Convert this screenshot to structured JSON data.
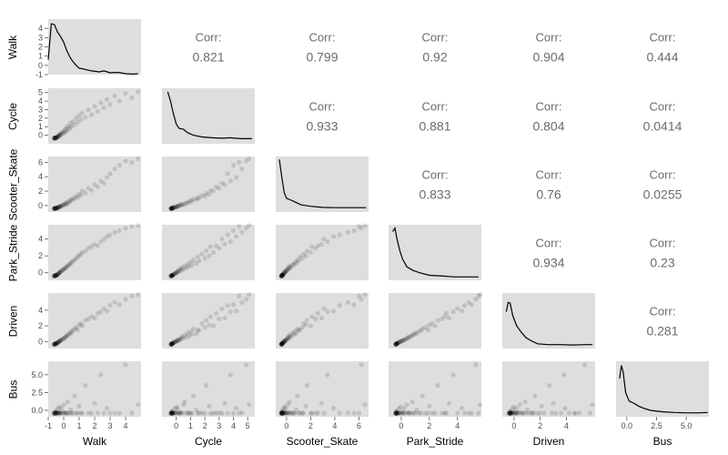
{
  "chart_data": {
    "type": "scatter",
    "variables": [
      "Walk",
      "Cycle",
      "Scooter_Skate",
      "Park_Stride",
      "Driven",
      "Bus"
    ],
    "axis_ranges": {
      "Walk": [
        -1,
        5
      ],
      "Cycle": [
        -1,
        5.5
      ],
      "Scooter_Skate": [
        -0.9,
        6.8
      ],
      "Park_Stride": [
        -0.9,
        5.7
      ],
      "Driven": [
        -0.9,
        6.2
      ],
      "Bus": [
        -0.9,
        6.9
      ]
    },
    "tick_values": {
      "Walk": [
        -1,
        0,
        1,
        2,
        3,
        4
      ],
      "Cycle": [
        0,
        1,
        2,
        3,
        4,
        5
      ],
      "Scooter_Skate": [
        0,
        2,
        4,
        6
      ],
      "Park_Stride": [
        0,
        2,
        4
      ],
      "Driven": [
        0,
        2,
        4
      ],
      "Bus": [
        0.0,
        2.5,
        5.0
      ]
    },
    "tick_labels": {
      "Walk": [
        "-1",
        "0",
        "1",
        "2",
        "3",
        "4"
      ],
      "Cycle": [
        "0",
        "1",
        "2",
        "3",
        "4",
        "5"
      ],
      "Scooter_Skate": [
        "0",
        "2",
        "4",
        "6"
      ],
      "Park_Stride": [
        "0",
        "2",
        "4"
      ],
      "Driven": [
        "0",
        "2",
        "4"
      ],
      "Bus": [
        "0.0",
        "2.5",
        "5.0"
      ]
    },
    "correlation_label": "Corr:",
    "correlations": [
      {
        "row": "Walk",
        "col": "Cycle",
        "value": "0.821"
      },
      {
        "row": "Walk",
        "col": "Scooter_Skate",
        "value": "0.799"
      },
      {
        "row": "Walk",
        "col": "Park_Stride",
        "value": "0.92"
      },
      {
        "row": "Walk",
        "col": "Driven",
        "value": "0.904"
      },
      {
        "row": "Walk",
        "col": "Bus",
        "value": "0.444"
      },
      {
        "row": "Cycle",
        "col": "Scooter_Skate",
        "value": "0.933"
      },
      {
        "row": "Cycle",
        "col": "Park_Stride",
        "value": "0.881"
      },
      {
        "row": "Cycle",
        "col": "Driven",
        "value": "0.804"
      },
      {
        "row": "Cycle",
        "col": "Bus",
        "value": "0.0414"
      },
      {
        "row": "Scooter_Skate",
        "col": "Park_Stride",
        "value": "0.833"
      },
      {
        "row": "Scooter_Skate",
        "col": "Driven",
        "value": "0.76"
      },
      {
        "row": "Scooter_Skate",
        "col": "Bus",
        "value": "0.0255"
      },
      {
        "row": "Park_Stride",
        "col": "Driven",
        "value": "0.934"
      },
      {
        "row": "Park_Stride",
        "col": "Bus",
        "value": "0.23"
      },
      {
        "row": "Driven",
        "col": "Bus",
        "value": "0.281"
      }
    ],
    "density_curves": {
      "Walk": [
        [
          -1,
          0.6
        ],
        [
          -0.8,
          4.5
        ],
        [
          -0.6,
          4.4
        ],
        [
          -0.4,
          3.6
        ],
        [
          -0.2,
          3.1
        ],
        [
          0,
          2.5
        ],
        [
          0.2,
          1.6
        ],
        [
          0.4,
          0.9
        ],
        [
          0.6,
          0.4
        ],
        [
          0.8,
          0.0
        ],
        [
          1.0,
          -0.3
        ],
        [
          1.3,
          -0.4
        ],
        [
          1.8,
          -0.6
        ],
        [
          2.3,
          -0.7
        ],
        [
          2.6,
          -0.6
        ],
        [
          3.0,
          -0.8
        ],
        [
          3.5,
          -0.75
        ],
        [
          4.0,
          -0.9
        ],
        [
          4.5,
          -0.95
        ],
        [
          4.8,
          -0.9
        ]
      ],
      "Cycle": [
        [
          -0.6,
          5.1
        ],
        [
          -0.4,
          4.0
        ],
        [
          -0.2,
          2.5
        ],
        [
          0,
          1.3
        ],
        [
          0.2,
          0.8
        ],
        [
          0.5,
          0.7
        ],
        [
          0.8,
          0.3
        ],
        [
          1.2,
          0.0
        ],
        [
          1.8,
          -0.2
        ],
        [
          2.5,
          -0.3
        ],
        [
          3.2,
          -0.35
        ],
        [
          3.8,
          -0.3
        ],
        [
          4.5,
          -0.4
        ],
        [
          5.3,
          -0.4
        ]
      ],
      "Scooter_Skate": [
        [
          -0.6,
          6.4
        ],
        [
          -0.4,
          4.0
        ],
        [
          -0.2,
          1.8
        ],
        [
          0,
          1.0
        ],
        [
          0.3,
          0.8
        ],
        [
          0.7,
          0.5
        ],
        [
          1.2,
          0.1
        ],
        [
          2.0,
          -0.1
        ],
        [
          3.0,
          -0.25
        ],
        [
          4.0,
          -0.3
        ],
        [
          5.0,
          -0.3
        ],
        [
          6.0,
          -0.3
        ],
        [
          6.6,
          -0.3
        ]
      ],
      "Park_Stride": [
        [
          -0.6,
          4.9
        ],
        [
          -0.45,
          5.3
        ],
        [
          -0.3,
          4.0
        ],
        [
          -0.1,
          2.6
        ],
        [
          0.1,
          1.6
        ],
        [
          0.4,
          0.7
        ],
        [
          0.8,
          0.3
        ],
        [
          1.3,
          0.0
        ],
        [
          2.0,
          -0.3
        ],
        [
          3.0,
          -0.4
        ],
        [
          3.8,
          -0.5
        ],
        [
          4.6,
          -0.5
        ],
        [
          5.5,
          -0.5
        ]
      ],
      "Driven": [
        [
          -0.6,
          3.8
        ],
        [
          -0.45,
          5.0
        ],
        [
          -0.3,
          4.9
        ],
        [
          -0.1,
          3.3
        ],
        [
          0.2,
          2.0
        ],
        [
          0.5,
          1.3
        ],
        [
          0.9,
          0.5
        ],
        [
          1.3,
          0.1
        ],
        [
          1.8,
          -0.3
        ],
        [
          2.6,
          -0.4
        ],
        [
          3.5,
          -0.4
        ],
        [
          4.5,
          -0.45
        ],
        [
          5.5,
          -0.4
        ],
        [
          6.0,
          -0.4
        ]
      ],
      "Bus": [
        [
          -0.6,
          4.5
        ],
        [
          -0.45,
          6.3
        ],
        [
          -0.3,
          5.4
        ],
        [
          -0.1,
          2.5
        ],
        [
          0.2,
          1.3
        ],
        [
          0.6,
          1.0
        ],
        [
          1.0,
          0.6
        ],
        [
          1.4,
          0.3
        ],
        [
          2.0,
          0.0
        ],
        [
          3.0,
          -0.2
        ],
        [
          4.0,
          -0.3
        ],
        [
          5.0,
          -0.35
        ],
        [
          6.0,
          -0.35
        ],
        [
          6.8,
          -0.3
        ]
      ]
    },
    "points": [
      [
        -0.62,
        -0.36,
        -0.42,
        -0.4,
        -0.38,
        -0.4
      ],
      [
        -0.6,
        -0.35,
        -0.4,
        -0.38,
        -0.35,
        -0.42
      ],
      [
        -0.58,
        -0.34,
        -0.42,
        -0.37,
        -0.34,
        -0.38
      ],
      [
        -0.57,
        -0.33,
        -0.39,
        -0.36,
        -0.33,
        -0.41
      ],
      [
        -0.55,
        -0.32,
        -0.4,
        -0.35,
        -0.32,
        -0.39
      ],
      [
        -0.54,
        -0.31,
        -0.38,
        -0.34,
        -0.3,
        -0.43
      ],
      [
        -0.52,
        -0.3,
        -0.39,
        -0.33,
        -0.28,
        -0.37
      ],
      [
        -0.5,
        -0.29,
        -0.37,
        -0.32,
        -0.27,
        -0.4
      ],
      [
        -0.48,
        -0.28,
        -0.36,
        -0.3,
        -0.25,
        -0.41
      ],
      [
        -0.46,
        -0.27,
        -0.35,
        -0.29,
        -0.24,
        -0.36
      ],
      [
        -0.62,
        -0.38,
        -0.44,
        -0.41,
        -0.39,
        -0.44
      ],
      [
        -0.61,
        -0.37,
        -0.43,
        -0.4,
        -0.37,
        -0.35
      ],
      [
        -0.56,
        -0.3,
        -0.38,
        -0.33,
        -0.31,
        -0.2
      ],
      [
        -0.51,
        -0.31,
        -0.4,
        -0.35,
        -0.29,
        -0.1
      ],
      [
        -0.44,
        -0.26,
        -0.34,
        -0.28,
        -0.22,
        -0.38
      ],
      [
        -0.42,
        -0.22,
        -0.32,
        -0.25,
        -0.2,
        -0.3
      ],
      [
        -0.4,
        -0.18,
        -0.3,
        -0.2,
        -0.15,
        -0.4
      ],
      [
        -0.38,
        -0.12,
        -0.28,
        -0.18,
        -0.12,
        0.2
      ],
      [
        -0.35,
        -0.15,
        -0.25,
        -0.14,
        -0.08,
        -0.38
      ],
      [
        -0.32,
        -0.08,
        -0.2,
        -0.1,
        -0.05,
        -0.36
      ],
      [
        -0.3,
        0.0,
        -0.18,
        -0.05,
        -0.02,
        0.5
      ],
      [
        -0.28,
        -0.05,
        -0.22,
        -0.02,
        0.03,
        -0.39
      ],
      [
        -0.25,
        0.1,
        -0.1,
        0.05,
        0.1,
        -0.4
      ],
      [
        -0.22,
        0.05,
        -0.15,
        0.1,
        0.08,
        -0.25
      ],
      [
        -0.2,
        0.2,
        -0.05,
        0.15,
        0.15,
        -0.37
      ],
      [
        -0.15,
        0.1,
        -0.08,
        0.2,
        0.2,
        0.3
      ],
      [
        -0.1,
        0.35,
        0.05,
        0.25,
        0.3,
        -0.38
      ],
      [
        -0.05,
        0.2,
        0.0,
        0.35,
        0.25,
        -0.39
      ],
      [
        0.0,
        0.5,
        0.1,
        0.4,
        0.45,
        0.8
      ],
      [
        0.05,
        0.3,
        0.2,
        0.5,
        0.4,
        -0.3
      ],
      [
        0.1,
        0.7,
        0.3,
        0.55,
        0.55,
        -0.38
      ],
      [
        0.15,
        0.4,
        0.15,
        0.6,
        0.65,
        -0.36
      ],
      [
        0.2,
        0.9,
        0.4,
        0.75,
        0.7,
        -0.4
      ],
      [
        0.25,
        0.6,
        0.25,
        0.8,
        0.85,
        1.2
      ],
      [
        0.3,
        1.1,
        0.6,
        0.9,
        0.9,
        -0.39
      ],
      [
        0.4,
        0.8,
        0.5,
        1.0,
        1.1,
        -0.35
      ],
      [
        0.45,
        1.4,
        0.8,
        1.1,
        1.0,
        0.1
      ],
      [
        0.5,
        1.0,
        0.7,
        1.25,
        1.3,
        -0.38
      ],
      [
        0.6,
        1.6,
        1.0,
        1.4,
        1.4,
        -0.37
      ],
      [
        0.7,
        1.2,
        0.9,
        1.5,
        1.6,
        2.0
      ],
      [
        0.8,
        2.0,
        1.3,
        1.7,
        1.8,
        -0.4
      ],
      [
        0.9,
        1.5,
        1.1,
        1.9,
        1.5,
        -0.36
      ],
      [
        1.0,
        2.3,
        1.6,
        2.0,
        2.1,
        0.6
      ],
      [
        1.1,
        1.8,
        1.4,
        2.2,
        2.3,
        -0.38
      ],
      [
        1.2,
        2.6,
        2.0,
        2.4,
        2.0,
        -0.39
      ],
      [
        1.4,
        2.1,
        1.7,
        2.6,
        2.7,
        3.5
      ],
      [
        1.6,
        3.0,
        2.4,
        2.9,
        2.9,
        -0.37
      ],
      [
        1.8,
        2.4,
        2.1,
        3.1,
        3.2,
        -0.4
      ],
      [
        2.0,
        3.4,
        2.9,
        3.4,
        3.0,
        1.0
      ],
      [
        2.2,
        2.8,
        2.6,
        3.2,
        3.6,
        -0.38
      ],
      [
        2.4,
        3.8,
        3.4,
        3.7,
        3.8,
        5.0
      ],
      [
        2.6,
        3.2,
        3.1,
        4.0,
        4.2,
        -0.39
      ],
      [
        2.8,
        4.2,
        3.9,
        4.3,
        3.9,
        0.3
      ],
      [
        3.0,
        3.6,
        4.4,
        4.5,
        4.6,
        -0.37
      ],
      [
        3.3,
        4.6,
        5.1,
        4.8,
        5.0,
        -0.36
      ],
      [
        3.6,
        4.0,
        5.6,
        5.0,
        4.7,
        -0.4
      ],
      [
        4.0,
        4.9,
        6.2,
        5.3,
        5.4,
        6.4
      ],
      [
        4.4,
        4.4,
        6.0,
        5.5,
        5.8,
        -0.38
      ],
      [
        4.8,
        5.1,
        6.5,
        5.6,
        6.0,
        0.8
      ]
    ]
  }
}
